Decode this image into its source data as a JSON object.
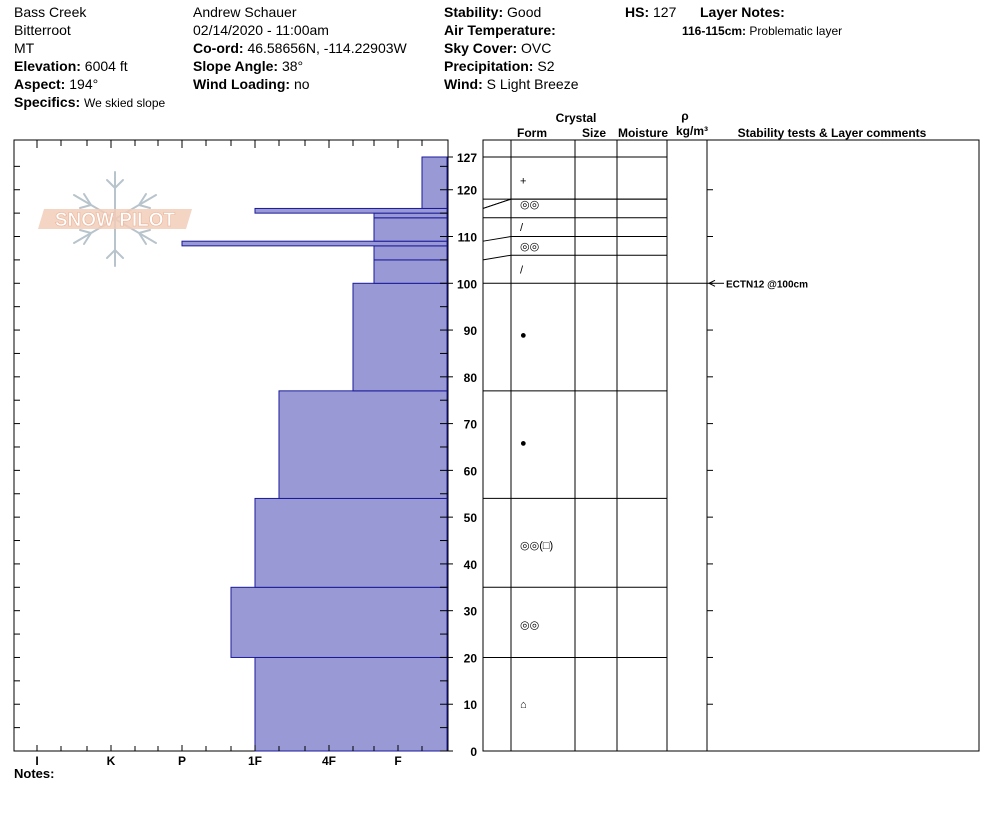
{
  "header": {
    "location": "Bass Creek",
    "range": "Bitterroot",
    "state": "MT",
    "elevation_label": "Elevation:",
    "elevation": "6004 ft",
    "aspect_label": "Aspect:",
    "aspect": "194°",
    "specifics_label": "Specifics:",
    "specifics": "We skied slope",
    "observer": "Andrew Schauer",
    "datetime": "02/14/2020 - 11:00am",
    "coord_label": "Co-ord:",
    "coord": "46.58656N, -114.22903W",
    "slope_label": "Slope Angle:",
    "slope": "38°",
    "wind_loading_label": "Wind Loading:",
    "wind_loading": "no",
    "stability_label": "Stability:",
    "stability": "Good",
    "air_temp_label": "Air Temperature:",
    "sky_label": "Sky Cover:",
    "sky": "OVC",
    "precip_label": "Precipitation:",
    "precip": "S2",
    "wind_label": "Wind:",
    "wind": "S Light Breeze",
    "hs_label": "HS:",
    "hs": "127",
    "layer_notes_label": "Layer Notes:",
    "layer_note_range": "116-115cm:",
    "layer_note_text": "Problematic layer"
  },
  "logo_text": "SNOW PILOT",
  "table_headers": {
    "crystal": "Crystal",
    "form": "Form",
    "size": "Size",
    "moisture": "Moisture",
    "rho": "ρ",
    "density_unit": "kg/m³",
    "comments": "Stability tests & Layer comments"
  },
  "notes_label": "Notes:",
  "chart_data": {
    "type": "bar",
    "orientation": "horizontal",
    "y_axis": {
      "range": [
        0,
        127
      ],
      "ticks": [
        0,
        10,
        20,
        30,
        40,
        50,
        60,
        70,
        80,
        90,
        100,
        110,
        120,
        127
      ]
    },
    "x_axis": {
      "labels": [
        "I",
        "K",
        "P",
        "1F",
        "4F",
        "F"
      ]
    },
    "hardness_layers": [
      {
        "bottom": 0,
        "top": 20,
        "hardness": "1F"
      },
      {
        "bottom": 20,
        "top": 35,
        "hardness": "1F+"
      },
      {
        "bottom": 35,
        "top": 54,
        "hardness": "1F"
      },
      {
        "bottom": 54,
        "top": 77,
        "hardness": "1F-"
      },
      {
        "bottom": 77,
        "top": 100,
        "hardness": "4F-"
      },
      {
        "bottom": 100,
        "top": 105,
        "hardness": "F+"
      },
      {
        "bottom": 105,
        "top": 108,
        "hardness": "F+"
      },
      {
        "bottom": 108,
        "top": 109,
        "hardness": "P"
      },
      {
        "bottom": 109,
        "top": 114,
        "hardness": "F+"
      },
      {
        "bottom": 114,
        "top": 115,
        "hardness": "F+"
      },
      {
        "bottom": 115,
        "top": 116,
        "hardness": "1F"
      },
      {
        "bottom": 116,
        "top": 127,
        "hardness": "F-"
      }
    ],
    "layer_boundaries": [
      20,
      35,
      54,
      77,
      100,
      105,
      109,
      114,
      116,
      118,
      127
    ],
    "crystal_forms": [
      {
        "height": 10,
        "symbol": "⌂"
      },
      {
        "height": 27,
        "symbol": "◎◎"
      },
      {
        "height": 44,
        "symbol": "◎◎(□)"
      },
      {
        "height": 66,
        "symbol": "●"
      },
      {
        "height": 89,
        "symbol": "●"
      },
      {
        "height": 103,
        "symbol": "/"
      },
      {
        "height": 108,
        "symbol": "◎◎"
      },
      {
        "height": 112,
        "symbol": "/"
      },
      {
        "height": 117,
        "symbol": "◎◎"
      },
      {
        "height": 122,
        "symbol": "+"
      }
    ],
    "stability_tests": [
      {
        "height": 100,
        "label": "ECTN12 @100cm"
      }
    ],
    "colors": {
      "fill": "#9999d6",
      "stroke": "#1a1a99"
    }
  }
}
